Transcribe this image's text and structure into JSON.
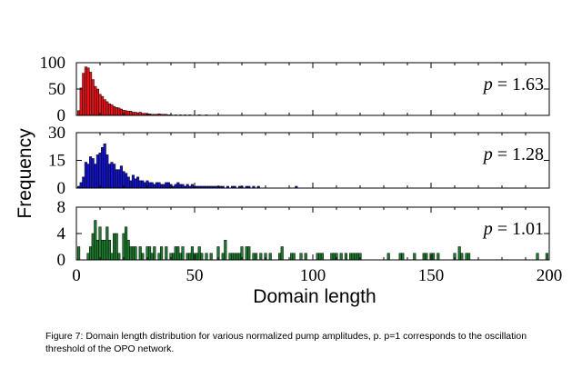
{
  "chart_data": {
    "type": "bar",
    "xlabel": "Domain length",
    "ylabel": "Frequency",
    "xlim": [
      0,
      200
    ],
    "xticks": [
      0,
      50,
      100,
      150,
      200
    ],
    "panels": [
      {
        "p_symbol": "p",
        "p_text": " = 1.63",
        "color": "#e8131b",
        "ylim": [
          0,
          100
        ],
        "yticks": [
          0,
          50,
          100
        ],
        "lengths": [
          1,
          2,
          3,
          4,
          5,
          6,
          7,
          8,
          9,
          10,
          11,
          12,
          13,
          14,
          15,
          16,
          17,
          18,
          19,
          20,
          21,
          22,
          23,
          24,
          25,
          26,
          27,
          28,
          29,
          30,
          31,
          32,
          33,
          34,
          35,
          36,
          37,
          38,
          39,
          40,
          42,
          44,
          46,
          48,
          52,
          55
        ],
        "counts": [
          9,
          52,
          80,
          92,
          90,
          82,
          68,
          55,
          50,
          40,
          36,
          30,
          26,
          22,
          20,
          17,
          15,
          14,
          12,
          10,
          9,
          8,
          8,
          6,
          6,
          5,
          6,
          4,
          4,
          3,
          3,
          2,
          2,
          2,
          3,
          2,
          2,
          2,
          1,
          1,
          1,
          1,
          1,
          1,
          1,
          1
        ]
      },
      {
        "p_symbol": "p",
        "p_text": " = 1.28",
        "color": "#1414c8",
        "ylim": [
          0,
          30
        ],
        "yticks": [
          0,
          15,
          30
        ],
        "lengths": [
          1,
          2,
          3,
          4,
          5,
          6,
          7,
          8,
          9,
          10,
          11,
          12,
          13,
          14,
          15,
          16,
          17,
          18,
          19,
          20,
          21,
          22,
          23,
          24,
          25,
          26,
          27,
          28,
          29,
          30,
          31,
          32,
          33,
          34,
          35,
          36,
          37,
          38,
          39,
          40,
          41,
          42,
          43,
          44,
          45,
          46,
          47,
          48,
          49,
          50,
          51,
          52,
          53,
          54,
          55,
          56,
          57,
          58,
          59,
          60,
          61,
          62,
          64,
          66,
          67,
          69,
          70,
          72,
          73,
          75,
          77,
          93
        ],
        "counts": [
          1,
          3,
          6,
          14,
          13,
          17,
          16,
          13,
          18,
          19,
          22,
          24,
          18,
          13,
          14,
          13,
          10,
          10,
          12,
          9,
          8,
          6,
          4,
          7,
          5,
          6,
          4,
          4,
          3,
          4,
          3,
          3,
          2,
          3,
          3,
          2,
          2,
          3,
          3,
          2,
          1,
          2,
          3,
          2,
          2,
          1,
          2,
          1,
          2,
          1,
          1,
          1,
          1,
          1,
          1,
          1,
          1,
          1,
          1,
          1,
          1,
          1,
          1,
          1,
          1,
          1,
          1,
          1,
          1,
          1,
          1,
          1
        ]
      },
      {
        "p_symbol": "p",
        "p_text": " = 1.01",
        "color": "#1e7a2e",
        "ylim": [
          0,
          8
        ],
        "yticks": [
          0,
          4,
          8
        ],
        "lengths": [
          1,
          5,
          6,
          7,
          8,
          9,
          10,
          11,
          12,
          13,
          14,
          15,
          16,
          17,
          18,
          20,
          21,
          22,
          23,
          24,
          25,
          27,
          28,
          30,
          31,
          32,
          33,
          35,
          36,
          38,
          40,
          41,
          42,
          43,
          44,
          45,
          47,
          48,
          49,
          50,
          51,
          52,
          53,
          55,
          57,
          60,
          62,
          63,
          65,
          66,
          67,
          68,
          69,
          70,
          72,
          73,
          75,
          76,
          78,
          80,
          82,
          86,
          87,
          91,
          92,
          95,
          97,
          102,
          103,
          104,
          108,
          109,
          110,
          112,
          114,
          116,
          117,
          118,
          119,
          120,
          132,
          137,
          138,
          143,
          147,
          148,
          150,
          151,
          153,
          160,
          162,
          163,
          165,
          166,
          195,
          199
        ],
        "counts": [
          2,
          1,
          2,
          4,
          6,
          3,
          5,
          3,
          3,
          5,
          3,
          1,
          4,
          4,
          1,
          4,
          5,
          3,
          2,
          2,
          2,
          2,
          1,
          2,
          2,
          1,
          2,
          1,
          2,
          2,
          1,
          1,
          2,
          2,
          1,
          2,
          1,
          1,
          2,
          1,
          1,
          2,
          1,
          1,
          1,
          2,
          1,
          3,
          1,
          1,
          1,
          1,
          1,
          2,
          2,
          2,
          1,
          1,
          1,
          1,
          1,
          1,
          2,
          1,
          1,
          1,
          1,
          1,
          1,
          1,
          1,
          1,
          1,
          1,
          1,
          1,
          1,
          1,
          1,
          1,
          1,
          1,
          1,
          1,
          1,
          1,
          1,
          1,
          1,
          1,
          2,
          1,
          1,
          1,
          1,
          1
        ]
      }
    ]
  },
  "caption": "Figure 7: Domain length distribution for various normalized pump amplitudes, p. p=1 corresponds to the oscillation threshold of the OPO network."
}
